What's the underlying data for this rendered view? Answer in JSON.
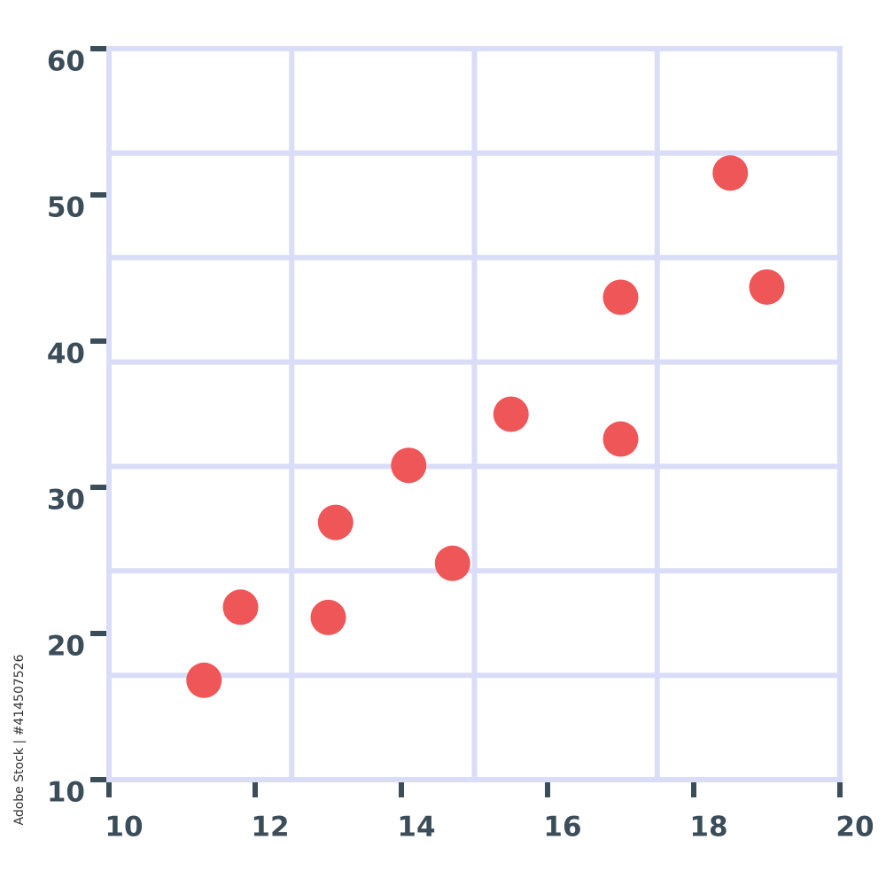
{
  "chart_data": {
    "type": "scatter",
    "x": [
      11.3,
      11.8,
      13.0,
      13.1,
      14.1,
      14.7,
      15.5,
      17.0,
      17.0,
      18.5,
      19.0
    ],
    "values": [
      16.8,
      21.8,
      21.1,
      27.6,
      31.5,
      24.8,
      35.0,
      43.0,
      33.3,
      51.5,
      43.7
    ],
    "color": "#ef5658",
    "xlim": [
      10,
      20
    ],
    "xticks": [
      10,
      12,
      14,
      16,
      18,
      20
    ],
    "ylim": [
      10,
      60
    ],
    "yticks": [
      10,
      20,
      30,
      40,
      50,
      60
    ],
    "x_gridlines": [
      10,
      12.5,
      15,
      17.5,
      20
    ],
    "y_gridlines": [
      10,
      17.14,
      24.29,
      31.43,
      38.57,
      45.71,
      52.86,
      60
    ],
    "grid_color": "#d9ddf7",
    "watermark": "Adobe Stock | #414507526"
  }
}
